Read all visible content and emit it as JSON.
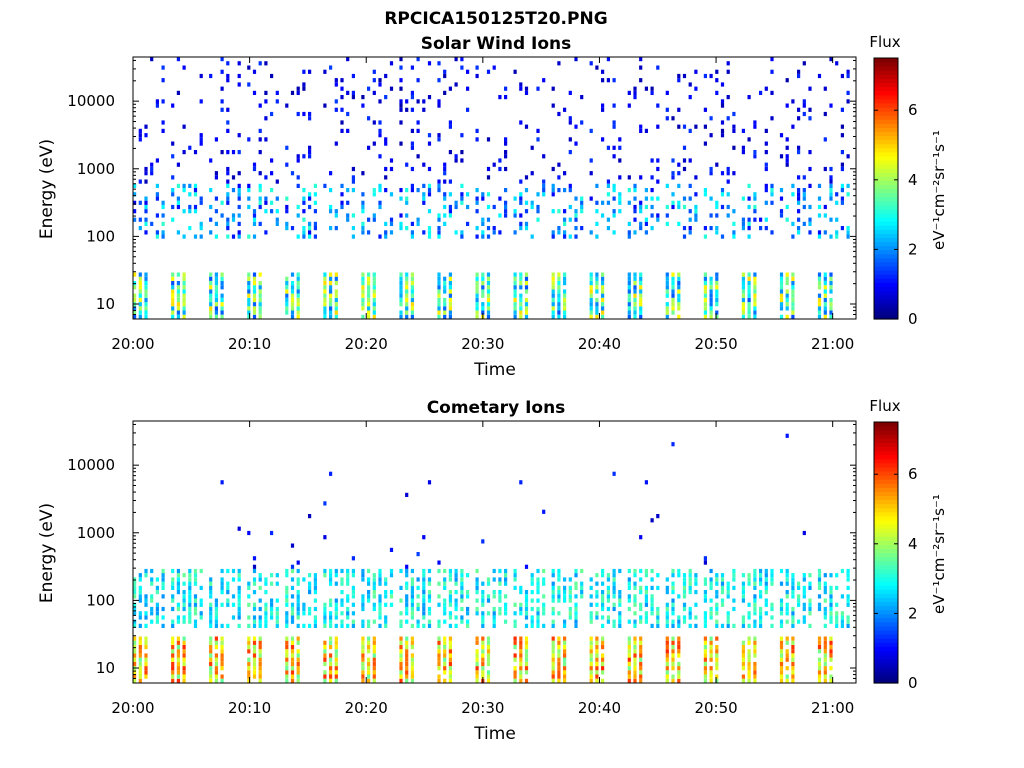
{
  "figure": {
    "title": "RPCICA150125T20.PNG"
  },
  "chart_data": [
    {
      "type": "heatmap",
      "title": "Solar Wind Ions",
      "xlabel": "Time",
      "ylabel": "Energy (eV)",
      "x_ticks": [
        "20:00",
        "20:10",
        "20:20",
        "20:30",
        "20:40",
        "20:50",
        "21:00"
      ],
      "x_range": [
        "20:00",
        "21:02"
      ],
      "y_scale": "log",
      "y_ticks": [
        "10",
        "100",
        "1000",
        "10000"
      ],
      "y_range": [
        6,
        45000
      ],
      "colorbar": {
        "label": "Flux",
        "unit": "eV⁻¹cm⁻²sr⁻¹s⁻¹",
        "range": [
          0,
          7.5
        ],
        "ticks": [
          "0",
          "2",
          "4",
          "6"
        ],
        "colormap": "jet"
      },
      "profile": "solar_wind",
      "sweep_count": 19,
      "low_energy_band_eV": [
        6,
        28
      ],
      "low_energy_band_flux": [
        1.5,
        5.0
      ],
      "mid_band_eV": [
        90,
        600
      ],
      "mid_band_flux": [
        0.8,
        3.2
      ],
      "sparse_high_energy_flux": [
        0.3,
        1.4
      ]
    },
    {
      "type": "heatmap",
      "title": "Cometary Ions",
      "xlabel": "Time",
      "ylabel": "Energy (eV)",
      "x_ticks": [
        "20:00",
        "20:10",
        "20:20",
        "20:30",
        "20:40",
        "20:50",
        "21:00"
      ],
      "x_range": [
        "20:00",
        "21:02"
      ],
      "y_scale": "log",
      "y_ticks": [
        "10",
        "100",
        "1000",
        "10000"
      ],
      "y_range": [
        6,
        45000
      ],
      "colorbar": {
        "label": "Flux",
        "unit": "eV⁻¹cm⁻²sr⁻¹s⁻¹",
        "range": [
          0,
          7.5
        ],
        "ticks": [
          "0",
          "2",
          "4",
          "6"
        ],
        "colormap": "jet"
      },
      "profile": "cometary",
      "sweep_count": 19,
      "low_energy_band_eV": [
        6,
        28
      ],
      "low_energy_band_flux": [
        3.5,
        6.3
      ],
      "mid_band_eV": [
        40,
        300
      ],
      "mid_band_flux": [
        2.0,
        3.6
      ],
      "sparse_high_energy_flux": [
        0.4,
        1.4
      ]
    }
  ]
}
